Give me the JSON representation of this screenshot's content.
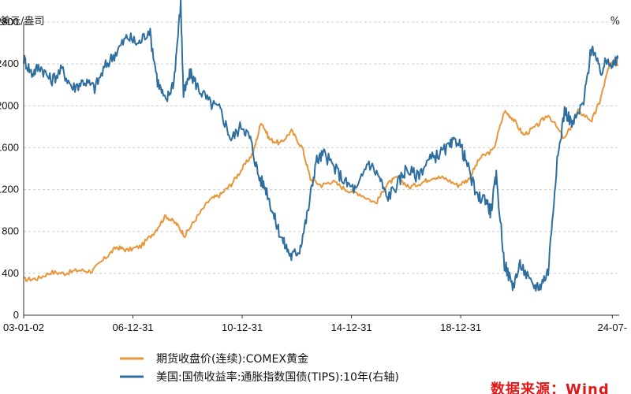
{
  "chart_data": {
    "type": "line",
    "left_axis_label": "美元/盎司",
    "right_axis_label": "%",
    "ylim_left": [
      0,
      2800
    ],
    "ylim_right": [
      -1.5,
      2.5
    ],
    "grid": true,
    "x_tick_labels": [
      "03-01-02",
      "06-12-31",
      "10-12-31",
      "14-12-31",
      "18-12-31",
      "24-07-"
    ],
    "x_tick_years": [
      2003.0,
      2007.0,
      2011.0,
      2015.0,
      2019.0,
      2024.55
    ],
    "xlim": [
      2003.0,
      2024.8
    ],
    "y_tick_labels": [
      "0",
      "400",
      "800",
      "1200",
      "1600",
      "2000",
      "2400",
      "2800"
    ],
    "legend_position": "bottom",
    "series": [
      {
        "name": "期货收盘价(连续):COMEX黄金",
        "axis": "left",
        "color": "#e8963a",
        "x": [
          2003.0,
          2003.5,
          2004.0,
          2004.5,
          2005.0,
          2005.5,
          2006.0,
          2006.4,
          2006.8,
          2007.3,
          2007.8,
          2008.2,
          2008.6,
          2008.9,
          2009.3,
          2009.8,
          2010.2,
          2010.6,
          2011.0,
          2011.4,
          2011.7,
          2012.0,
          2012.4,
          2012.8,
          2013.2,
          2013.5,
          2013.9,
          2014.3,
          2014.8,
          2015.3,
          2015.9,
          2016.3,
          2016.7,
          2017.1,
          2017.6,
          2018.0,
          2018.4,
          2018.9,
          2019.3,
          2019.7,
          2020.2,
          2020.6,
          2020.9,
          2021.3,
          2021.8,
          2022.2,
          2022.8,
          2023.3,
          2023.8,
          2024.1,
          2024.4,
          2024.6,
          2024.75
        ],
        "values": [
          340,
          350,
          410,
          400,
          430,
          420,
          550,
          650,
          620,
          660,
          800,
          950,
          870,
          760,
          920,
          1100,
          1150,
          1250,
          1400,
          1550,
          1850,
          1680,
          1640,
          1760,
          1600,
          1300,
          1240,
          1280,
          1200,
          1160,
          1070,
          1250,
          1320,
          1220,
          1270,
          1320,
          1310,
          1240,
          1300,
          1500,
          1580,
          1950,
          1880,
          1720,
          1810,
          1920,
          1680,
          1950,
          1860,
          2050,
          2350,
          2450,
          2400
        ]
      },
      {
        "name": "美国:国债收益率:通胀指数国债(TIPS):10年(右轴)",
        "axis": "right",
        "color": "#2e6fa0",
        "x": [
          2003.0,
          2003.3,
          2003.6,
          2004.0,
          2004.4,
          2004.8,
          2005.2,
          2005.6,
          2006.0,
          2006.4,
          2006.8,
          2007.2,
          2007.6,
          2007.9,
          2008.2,
          2008.5,
          2008.75,
          2008.85,
          2009.1,
          2009.4,
          2009.8,
          2010.2,
          2010.6,
          2011.0,
          2011.3,
          2011.6,
          2011.9,
          2012.2,
          2012.5,
          2012.8,
          2013.1,
          2013.4,
          2013.7,
          2014.0,
          2014.4,
          2014.8,
          2015.2,
          2015.6,
          2016.0,
          2016.3,
          2016.7,
          2017.0,
          2017.4,
          2017.8,
          2018.2,
          2018.6,
          2018.9,
          2019.2,
          2019.6,
          2019.9,
          2020.1,
          2020.3,
          2020.6,
          2020.9,
          2021.2,
          2021.6,
          2021.9,
          2022.2,
          2022.5,
          2022.8,
          2023.1,
          2023.5,
          2023.8,
          2024.1,
          2024.4,
          2024.6,
          2024.75
        ],
        "values": [
          2.0,
          1.8,
          1.9,
          1.7,
          1.85,
          1.6,
          1.7,
          1.6,
          1.9,
          2.1,
          2.3,
          2.2,
          2.4,
          1.7,
          1.4,
          1.7,
          2.75,
          1.5,
          1.8,
          1.6,
          1.4,
          1.3,
          0.9,
          1.1,
          0.9,
          0.4,
          0.2,
          -0.2,
          -0.5,
          -0.7,
          -0.6,
          -0.1,
          0.6,
          0.7,
          0.5,
          0.3,
          0.2,
          0.6,
          0.4,
          0.1,
          0.3,
          0.5,
          0.4,
          0.6,
          0.7,
          0.8,
          0.9,
          0.6,
          0.1,
          0.1,
          -0.1,
          0.4,
          -0.8,
          -1.1,
          -0.8,
          -1.1,
          -1.1,
          -0.9,
          0.5,
          1.3,
          1.1,
          1.4,
          2.2,
          1.8,
          2.0,
          1.9,
          2.0
        ]
      }
    ]
  },
  "source_text": "数据来源：Wind"
}
